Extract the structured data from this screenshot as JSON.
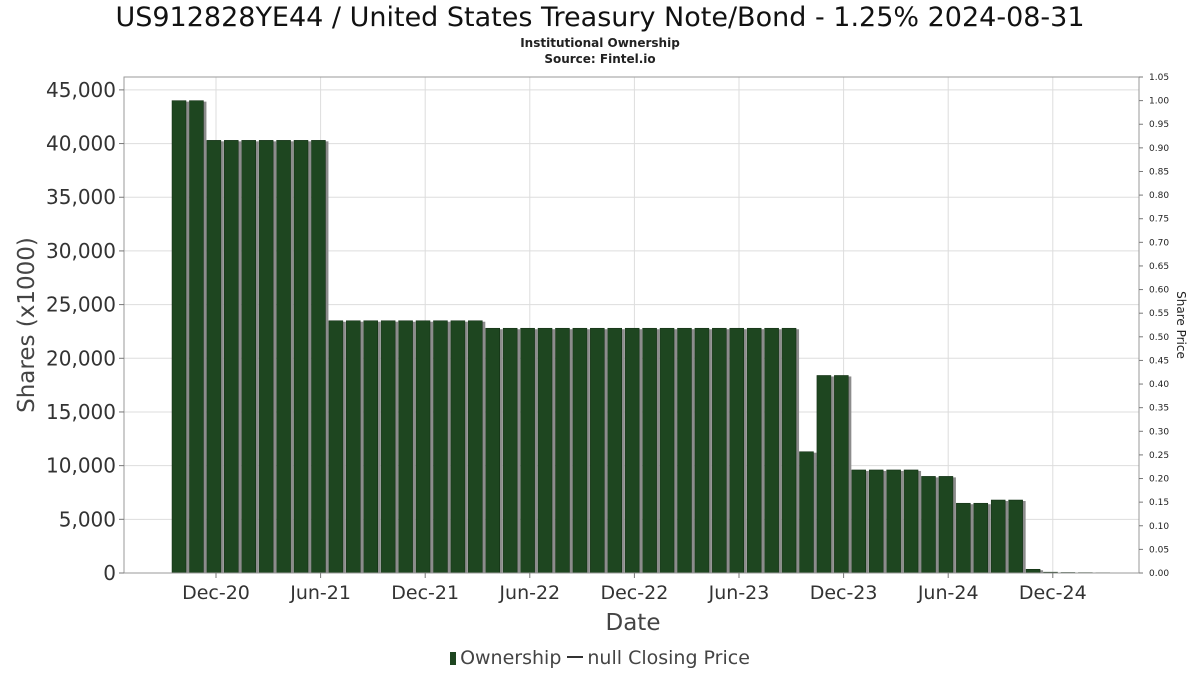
{
  "title": "US912828YE44 / United States Treasury Note/Bond - 1.25% 2024-08-31",
  "subtitle1": "Institutional Ownership",
  "subtitle2": "Source: Fintel.io",
  "legend": {
    "ownership": "Ownership",
    "price": "null Closing Price"
  },
  "colors": {
    "bar": "#1e4620",
    "bar_edge": "#0f2a10",
    "shadow": "#8c8c8c",
    "grid": "#dddddd"
  },
  "chart_data": {
    "type": "bar",
    "title": "US912828YE44 / United States Treasury Note/Bond - 1.25% 2024-08-31",
    "xlabel": "Date",
    "ylabel": "Shares (x1000)",
    "y2label": "Share Price",
    "ylim": [
      0,
      46200
    ],
    "y2lim": [
      0,
      1.05
    ],
    "yticks": [
      0,
      5000,
      10000,
      15000,
      20000,
      25000,
      30000,
      35000,
      40000,
      45000
    ],
    "ytick_labels": [
      "0",
      "5,000",
      "10,000",
      "15,000",
      "20,000",
      "25,000",
      "30,000",
      "35,000",
      "40,000",
      "45,000"
    ],
    "y2ticks": [
      "0.00",
      "0.05",
      "0.10",
      "0.15",
      "0.20",
      "0.25",
      "0.30",
      "0.35",
      "0.40",
      "0.45",
      "0.50",
      "0.55",
      "0.60",
      "0.65",
      "0.70",
      "0.75",
      "0.80",
      "0.85",
      "0.90",
      "0.95",
      "1.00",
      "1.05"
    ],
    "xticks": [
      "Dec-20",
      "Jun-21",
      "Dec-21",
      "Jun-22",
      "Dec-22",
      "Jun-23",
      "Dec-23",
      "Jun-24",
      "Dec-24"
    ],
    "grid": true,
    "legend_position": "bottom",
    "series": [
      {
        "name": "Ownership",
        "values": [
          44000,
          44000,
          40300,
          40300,
          40300,
          40300,
          40300,
          40300,
          40300,
          23500,
          23500,
          23500,
          23500,
          23500,
          23500,
          23500,
          23500,
          23500,
          22800,
          22800,
          22800,
          22800,
          22800,
          22800,
          22800,
          22800,
          22800,
          22800,
          22800,
          22800,
          22800,
          22800,
          22800,
          22800,
          22800,
          22800,
          11300,
          18400,
          18400,
          9600,
          9600,
          9600,
          9600,
          9000,
          9000,
          6500,
          6500,
          6800,
          6800,
          350,
          80,
          50,
          40,
          30
        ]
      },
      {
        "name": "null Closing Price",
        "values": []
      }
    ]
  }
}
